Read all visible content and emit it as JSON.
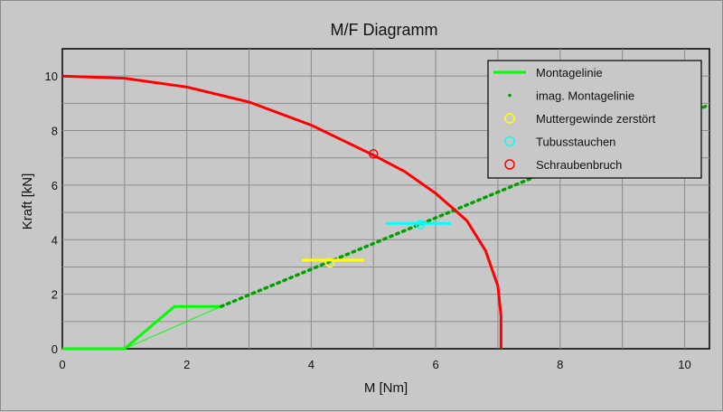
{
  "chart_data": {
    "type": "line",
    "title": "M/F Diagramm",
    "xlabel": "M [Nm]",
    "ylabel": "Kraft [kN]",
    "xlim": [
      0,
      10.4
    ],
    "ylim": [
      0,
      11
    ],
    "xticks": [
      "0",
      "2",
      "4",
      "6",
      "8",
      "10"
    ],
    "yticks": [
      "0",
      "2",
      "4",
      "6",
      "8",
      "10"
    ],
    "xtick_values": [
      0,
      2,
      4,
      6,
      8,
      10
    ],
    "ytick_values": [
      0,
      2,
      4,
      6,
      8,
      10
    ],
    "grid": true,
    "legend_position": "top-right",
    "series": [
      {
        "name": "Montagelinie",
        "style": "line",
        "color": "#00ff00",
        "points": [
          [
            0,
            0
          ],
          [
            1.0,
            0
          ],
          [
            1.8,
            1.55
          ],
          [
            2.55,
            1.55
          ],
          [
            1.0,
            0
          ]
        ]
      },
      {
        "name": "imag. Montagelinie",
        "style": "dotted",
        "color": "#00a000",
        "points": [
          [
            2.55,
            1.55
          ],
          [
            10.4,
            8.95
          ]
        ]
      },
      {
        "name": "Muttergewinde zerstört",
        "style": "segment",
        "color": "#ffff00",
        "points": [
          [
            3.85,
            3.25
          ],
          [
            4.85,
            3.25
          ]
        ],
        "marker": [
          4.3,
          3.15
        ]
      },
      {
        "name": "Tubusstauchen",
        "style": "segment",
        "color": "#00ffff",
        "points": [
          [
            5.2,
            4.6
          ],
          [
            6.25,
            4.6
          ]
        ],
        "marker": [
          5.75,
          4.55
        ]
      },
      {
        "name": "Schraubenbruch",
        "style": "curve",
        "color": "#ff0000",
        "points": [
          [
            0,
            10
          ],
          [
            1,
            9.92
          ],
          [
            2,
            9.6
          ],
          [
            3,
            9.05
          ],
          [
            4,
            8.2
          ],
          [
            5,
            7.1
          ],
          [
            5.5,
            6.5
          ],
          [
            6,
            5.7
          ],
          [
            6.5,
            4.7
          ],
          [
            6.8,
            3.6
          ],
          [
            7.0,
            2.3
          ],
          [
            7.05,
            1.2
          ],
          [
            7.05,
            0
          ]
        ],
        "marker": [
          5.0,
          7.15
        ]
      }
    ]
  }
}
